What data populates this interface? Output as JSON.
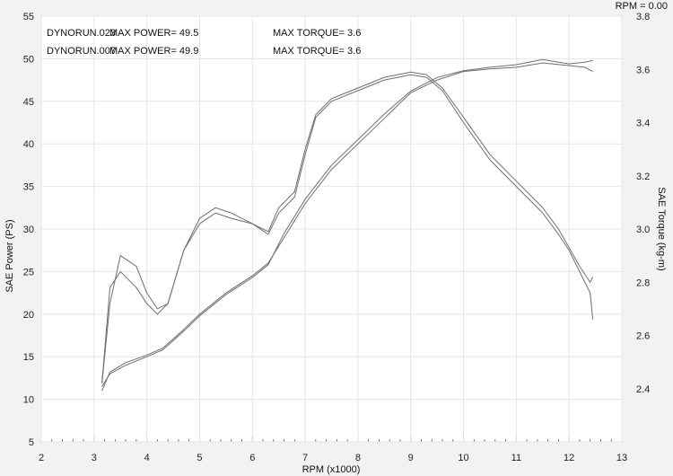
{
  "chart_data": {
    "type": "line",
    "x_unit_label": "RPM (x1000)",
    "y_left_label": "SAE Power  (PS)",
    "y_right_label": "SAE Torque  (kg-m)",
    "rpm_readout": "RPM = 0.00",
    "xlim": [
      2,
      13
    ],
    "ylim_left": [
      5,
      55
    ],
    "ylim_right": [
      2.2,
      3.8
    ],
    "x_ticks": [
      "2",
      "3",
      "4",
      "5",
      "6",
      "7",
      "8",
      "9",
      "10",
      "11",
      "12",
      "13"
    ],
    "y_left_ticks": [
      "5",
      "10",
      "15",
      "20",
      "25",
      "30",
      "35",
      "40",
      "45",
      "50",
      "55"
    ],
    "y_right_ticks": [
      "2.4",
      "2.6",
      "2.8",
      "3.0",
      "3.2",
      "3.4",
      "3.6",
      "3.8"
    ],
    "grid": true,
    "legend": [
      {
        "run": "DYNORUN.023",
        "power_text": "MAX POWER= 49.5",
        "torque_text": "MAX TORQUE= 3.6"
      },
      {
        "run": "DYNORUN.007",
        "power_text": "MAX POWER= 49.9",
        "torque_text": "MAX TORQUE= 3.6"
      }
    ],
    "series": [
      {
        "quantity": "power",
        "axis": "left",
        "run": "DYNORUN.023",
        "x": [
          3.15,
          3.3,
          3.6,
          4.0,
          4.3,
          4.7,
          5.0,
          5.5,
          6.0,
          6.3,
          6.6,
          7.0,
          7.5,
          8.0,
          8.5,
          9.0,
          9.5,
          10.0,
          10.5,
          11.0,
          11.5,
          12.0,
          12.3,
          12.45
        ],
        "y": [
          11.0,
          13.2,
          14.3,
          15.2,
          16.0,
          18.2,
          20.0,
          22.5,
          24.5,
          26.0,
          29.0,
          33.0,
          37.0,
          40.0,
          43.0,
          46.0,
          47.5,
          48.5,
          48.8,
          49.0,
          49.5,
          49.2,
          49.0,
          48.5
        ]
      },
      {
        "quantity": "power",
        "axis": "left",
        "run": "DYNORUN.007",
        "x": [
          3.15,
          3.3,
          3.6,
          4.0,
          4.3,
          4.7,
          5.0,
          5.5,
          6.0,
          6.3,
          6.6,
          7.0,
          7.5,
          8.0,
          8.5,
          9.0,
          9.5,
          10.0,
          10.5,
          11.0,
          11.5,
          12.0,
          12.3,
          12.45
        ],
        "y": [
          11.5,
          13.0,
          14.0,
          15.0,
          15.8,
          18.0,
          19.8,
          22.3,
          24.3,
          25.8,
          29.5,
          33.5,
          37.5,
          40.5,
          43.5,
          46.2,
          47.8,
          48.6,
          49.0,
          49.3,
          49.9,
          49.4,
          49.6,
          49.8
        ]
      },
      {
        "quantity": "torque",
        "axis": "right",
        "run": "DYNORUN.023",
        "x": [
          3.15,
          3.3,
          3.5,
          3.8,
          4.0,
          4.2,
          4.4,
          4.7,
          5.0,
          5.3,
          5.6,
          6.0,
          6.3,
          6.5,
          6.8,
          7.0,
          7.2,
          7.5,
          8.0,
          8.5,
          9.0,
          9.3,
          9.6,
          10.0,
          10.5,
          11.0,
          11.5,
          11.8,
          12.0,
          12.2,
          12.4,
          12.45
        ],
        "y": [
          2.42,
          2.78,
          2.84,
          2.78,
          2.72,
          2.68,
          2.72,
          2.92,
          3.02,
          3.06,
          3.04,
          3.02,
          2.98,
          3.06,
          3.12,
          3.28,
          3.42,
          3.48,
          3.52,
          3.56,
          3.58,
          3.57,
          3.52,
          3.4,
          3.26,
          3.16,
          3.06,
          2.98,
          2.92,
          2.84,
          2.76,
          2.66
        ]
      },
      {
        "quantity": "torque",
        "axis": "right",
        "run": "DYNORUN.007",
        "x": [
          3.15,
          3.3,
          3.5,
          3.8,
          4.0,
          4.2,
          4.4,
          4.7,
          5.0,
          5.3,
          5.6,
          6.0,
          6.3,
          6.5,
          6.8,
          7.0,
          7.2,
          7.5,
          8.0,
          8.5,
          9.0,
          9.3,
          9.6,
          10.0,
          10.5,
          11.0,
          11.5,
          11.8,
          12.0,
          12.2,
          12.4,
          12.45
        ],
        "y": [
          2.42,
          2.72,
          2.9,
          2.86,
          2.76,
          2.7,
          2.72,
          2.92,
          3.04,
          3.08,
          3.06,
          3.02,
          2.99,
          3.08,
          3.14,
          3.3,
          3.43,
          3.49,
          3.53,
          3.57,
          3.59,
          3.58,
          3.53,
          3.42,
          3.28,
          3.18,
          3.08,
          3.0,
          2.93,
          2.86,
          2.8,
          2.82
        ]
      }
    ]
  }
}
